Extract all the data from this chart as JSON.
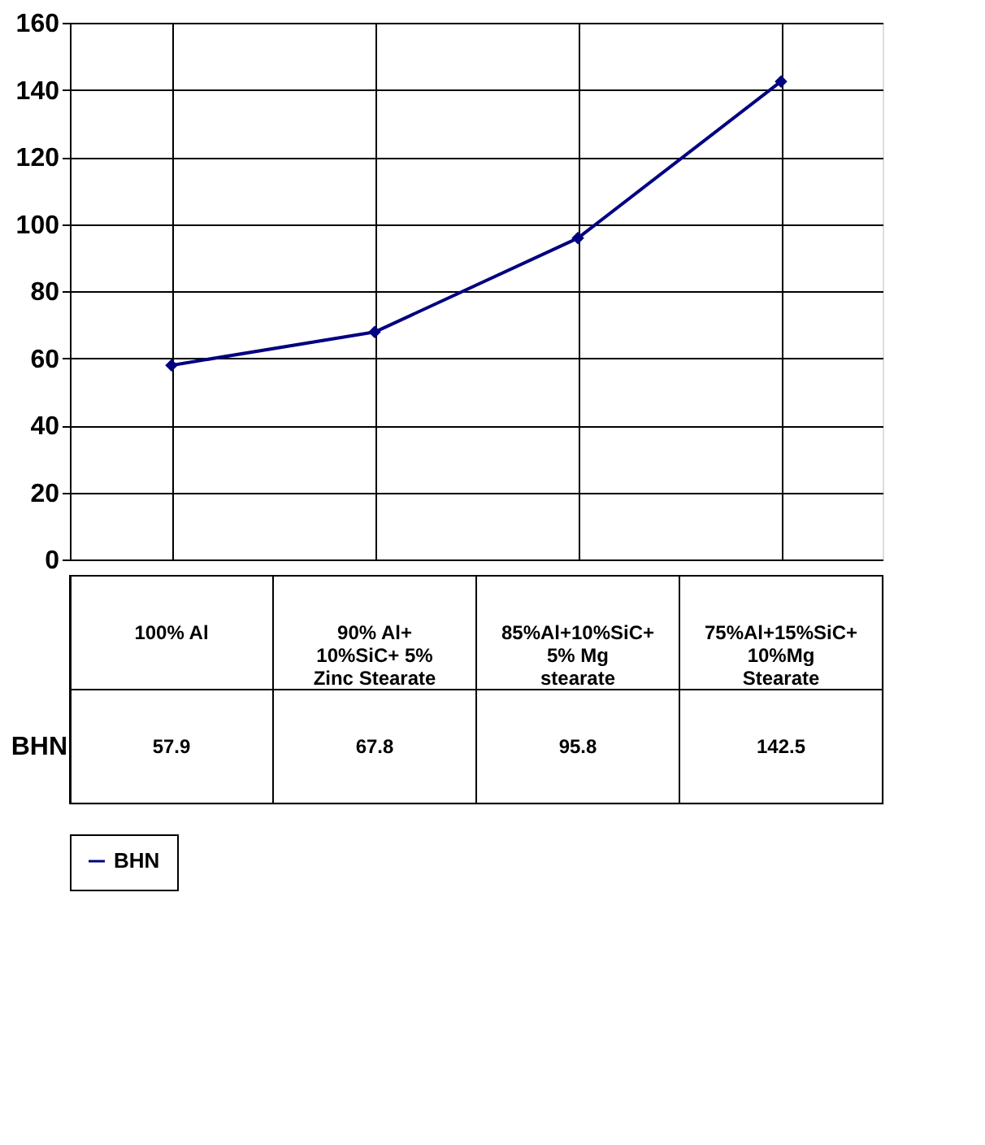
{
  "chart_data": {
    "type": "line",
    "categories": [
      "100% Al",
      "90% Al+10%SiC+ 5% Zinc Stearate",
      "85%Al+10%SiC+5% Mg stearate",
      "75%Al+15%SiC+10%Mg Stearate"
    ],
    "series": [
      {
        "name": "BHN",
        "color": "#000080",
        "values": [
          57.9,
          67.8,
          95.8,
          142.5
        ]
      }
    ],
    "ylim": [
      0,
      160
    ],
    "yticks": [
      0,
      20,
      40,
      60,
      80,
      100,
      120,
      140,
      160
    ],
    "grid": true,
    "marker": "diamond",
    "line_style": "solid",
    "legend": "bottom",
    "data_labels": true
  }
}
